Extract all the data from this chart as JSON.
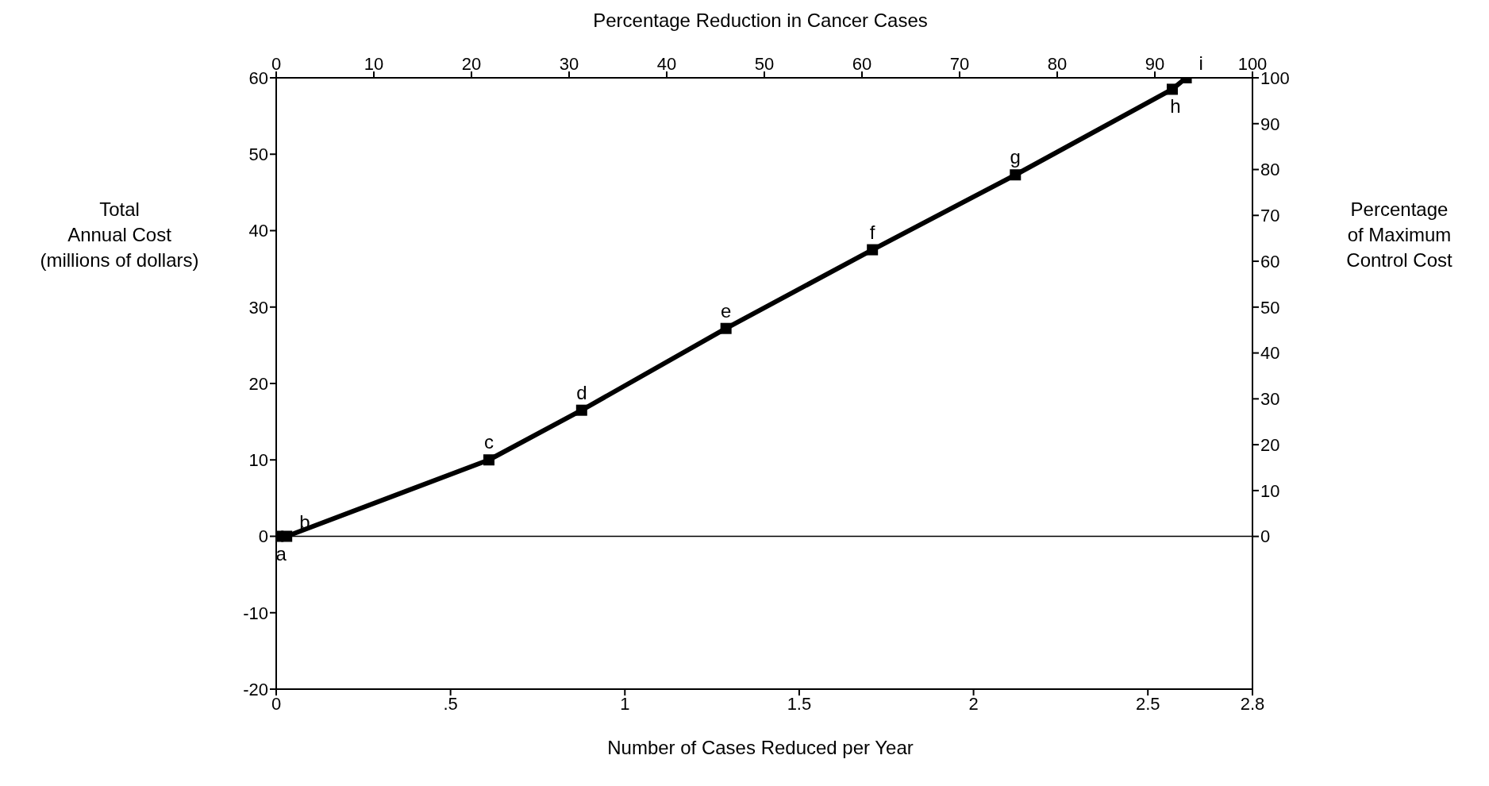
{
  "chart_data": {
    "type": "line",
    "xlabel": "Number of Cases Reduced per Year",
    "x2label": "Percentage Reduction in Cancer Cases",
    "ylabel": "Total\nAnnual Cost\n(millions of dollars)",
    "y2label": "Percentage\nof Maximum\nControl Cost",
    "x": [
      0.005,
      0.03,
      0.61,
      0.876,
      1.29,
      1.71,
      2.12,
      2.57,
      2.61
    ],
    "series": [
      {
        "color": "#000000",
        "values": [
          0,
          0,
          10,
          16.5,
          27.2,
          37.5,
          47.3,
          58.5,
          60
        ]
      }
    ],
    "xlim": [
      0,
      2.8
    ],
    "xticks": [
      0,
      {
        "value": 0.5,
        "label": ".5"
      },
      1,
      1.5,
      2,
      2.5,
      2.8
    ],
    "x2lim": [
      0,
      100
    ],
    "x2ticks": [
      0,
      10,
      20,
      30,
      40,
      50,
      60,
      70,
      80,
      90,
      100
    ],
    "ylim": [
      -20,
      60
    ],
    "yticks": [
      -20,
      -10,
      0,
      10,
      20,
      30,
      40,
      50,
      60
    ],
    "y2lim": [
      -33.3,
      100
    ],
    "y2ticks": [
      0,
      10,
      20,
      30,
      40,
      50,
      60,
      70,
      80,
      90,
      100
    ],
    "ref_lines": [
      {
        "axis": "y",
        "value": 0,
        "color": "#000000"
      }
    ],
    "annotations": [
      {
        "text": "a",
        "x": 0.005,
        "y": 0
      },
      {
        "text": "b",
        "x": 0.03,
        "y": 0
      },
      {
        "text": "c",
        "x": 0.61,
        "y": 10
      },
      {
        "text": "d",
        "x": 0.876,
        "y": 16.5
      },
      {
        "text": "e",
        "x": 1.29,
        "y": 27.2
      },
      {
        "text": "f",
        "x": 1.71,
        "y": 37.5
      },
      {
        "text": "g",
        "x": 2.12,
        "y": 47.3
      },
      {
        "text": "h",
        "x": 2.57,
        "y": 58.5
      },
      {
        "text": "i",
        "x": 2.61,
        "y": 60
      }
    ],
    "marker": "square",
    "line_style": "solid",
    "grid": false,
    "legend": false
  }
}
